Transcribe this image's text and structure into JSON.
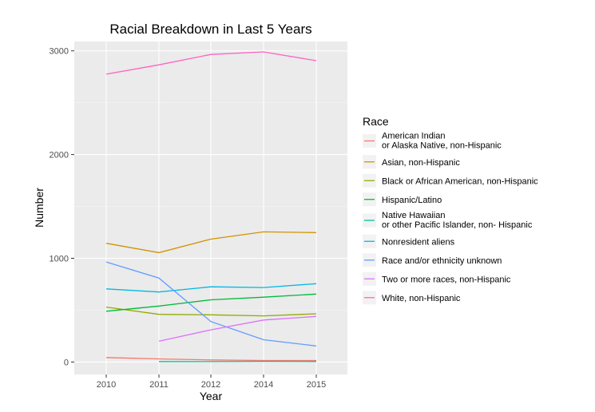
{
  "chart_data": {
    "type": "line",
    "title": "Racial Breakdown in Last 5 Years",
    "xlabel": "Year",
    "ylabel": "Number",
    "x_ticks": [
      "2010",
      "2011",
      "2012",
      "2014",
      "2015"
    ],
    "y_ticks": [
      "0",
      "1000",
      "2000",
      "3000"
    ],
    "y_tick_values": [
      0,
      1000,
      2000,
      3000
    ],
    "ylim": [
      -120,
      3090
    ],
    "grid": true,
    "legend_title": "Race",
    "legend_position": "right",
    "series": [
      {
        "name": "American Indian or Alaska Native, non-Hispanic",
        "label_lines": [
          "American Indian",
          "or Alaska Native, non-Hispanic"
        ],
        "color": "#F8766D",
        "points": [
          {
            "x": "2010",
            "y": 43
          },
          {
            "x": "2011",
            "y": 30
          },
          {
            "x": "2012",
            "y": 20
          },
          {
            "x": "2014",
            "y": 15
          },
          {
            "x": "2015",
            "y": 15
          }
        ]
      },
      {
        "name": "Asian, non-Hispanic",
        "label_lines": [
          "Asian, non-Hispanic"
        ],
        "color": "#D39200",
        "points": [
          {
            "x": "2010",
            "y": 1145
          },
          {
            "x": "2011",
            "y": 1055
          },
          {
            "x": "2012",
            "y": 1185
          },
          {
            "x": "2014",
            "y": 1255
          },
          {
            "x": "2015",
            "y": 1248
          }
        ]
      },
      {
        "name": "Black or African American, non-Hispanic",
        "label_lines": [
          "Black or African American, non-Hispanic"
        ],
        "color": "#93AA00",
        "points": [
          {
            "x": "2010",
            "y": 530
          },
          {
            "x": "2011",
            "y": 460
          },
          {
            "x": "2012",
            "y": 455
          },
          {
            "x": "2014",
            "y": 445
          },
          {
            "x": "2015",
            "y": 465
          }
        ]
      },
      {
        "name": "Hispanic/Latino",
        "label_lines": [
          "Hispanic/Latino"
        ],
        "color": "#00BA38",
        "points": [
          {
            "x": "2010",
            "y": 490
          },
          {
            "x": "2011",
            "y": 540
          },
          {
            "x": "2012",
            "y": 600
          },
          {
            "x": "2014",
            "y": 625
          },
          {
            "x": "2015",
            "y": 655
          }
        ]
      },
      {
        "name": "Native Hawaiian or other Pacific Islander, non- Hispanic",
        "label_lines": [
          "Native Hawaiian",
          "or other Pacific Islander, non- Hispanic"
        ],
        "color": "#00C19F",
        "points": [
          {
            "x": "2011",
            "y": 5
          },
          {
            "x": "2012",
            "y": 4
          },
          {
            "x": "2014",
            "y": 6
          },
          {
            "x": "2015",
            "y": 5
          }
        ]
      },
      {
        "name": "Nonresident aliens",
        "label_lines": [
          "Nonresident aliens"
        ],
        "color": "#00B9E3",
        "points": [
          {
            "x": "2010",
            "y": 705
          },
          {
            "x": "2011",
            "y": 675
          },
          {
            "x": "2012",
            "y": 725
          },
          {
            "x": "2014",
            "y": 718
          },
          {
            "x": "2015",
            "y": 755
          }
        ]
      },
      {
        "name": "Race and/or ethnicity unknown",
        "label_lines": [
          "Race and/or ethnicity unknown"
        ],
        "color": "#619CFF",
        "points": [
          {
            "x": "2010",
            "y": 965
          },
          {
            "x": "2011",
            "y": 810
          },
          {
            "x": "2012",
            "y": 390
          },
          {
            "x": "2014",
            "y": 215
          },
          {
            "x": "2015",
            "y": 155
          }
        ]
      },
      {
        "name": "Two or more races, non-Hispanic",
        "label_lines": [
          "Two or more races, non-Hispanic"
        ],
        "color": "#DB72FB",
        "points": [
          {
            "x": "2011",
            "y": 200
          },
          {
            "x": "2012",
            "y": 310
          },
          {
            "x": "2014",
            "y": 405
          },
          {
            "x": "2015",
            "y": 440
          }
        ]
      },
      {
        "name": "White, non-Hispanic",
        "label_lines": [
          "White, non-Hispanic"
        ],
        "color": "#FF61C3",
        "points": [
          {
            "x": "2010",
            "y": 2775
          },
          {
            "x": "2011",
            "y": 2865
          },
          {
            "x": "2012",
            "y": 2965
          },
          {
            "x": "2014",
            "y": 2990
          },
          {
            "x": "2015",
            "y": 2905
          }
        ]
      }
    ]
  }
}
